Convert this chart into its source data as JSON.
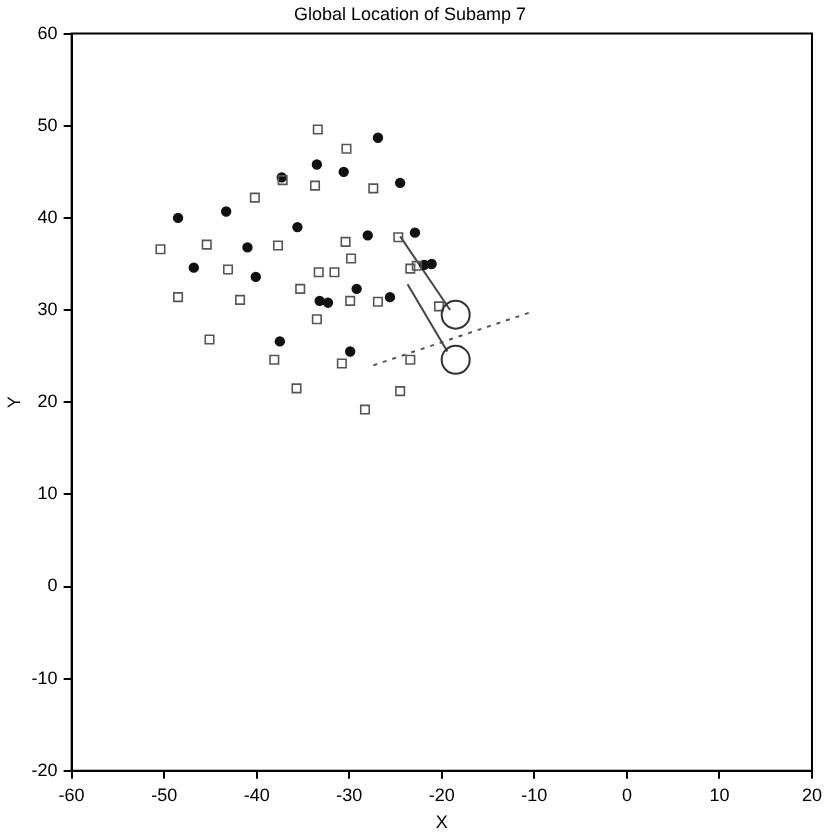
{
  "chart_data": {
    "type": "scatter",
    "title": "Global Location of Subamp 7",
    "xlabel": "X",
    "ylabel": "Y",
    "xlim": [
      -60,
      20
    ],
    "ylim": [
      -20,
      60
    ],
    "xticks": [
      -60,
      -50,
      -40,
      -30,
      -20,
      -10,
      0,
      10,
      20
    ],
    "yticks": [
      -20,
      -10,
      0,
      10,
      20,
      30,
      40,
      50,
      60
    ],
    "grid": false,
    "legend": false,
    "series": [
      {
        "marker": "square",
        "color": "#555555",
        "x": [
          -33.4,
          -30.3,
          -40.2,
          -37.2,
          -33.7,
          -27.4,
          -50.4,
          -45.4,
          -43.1,
          -37.7,
          -30.4,
          -24.7,
          -48.5,
          -41.8,
          -35.3,
          -33.3,
          -31.6,
          -29.8,
          -33.5,
          -29.9,
          -26.9,
          -23.4,
          -22.7,
          -45.1,
          -38.1,
          -30.8,
          -35.7,
          -28.3,
          -24.5,
          -23.4,
          -20.3
        ],
        "values": [
          49.6,
          47.5,
          42.2,
          44.1,
          43.5,
          43.2,
          36.6,
          37.1,
          34.4,
          37.0,
          37.4,
          37.9,
          31.4,
          31.1,
          32.3,
          34.1,
          34.1,
          35.6,
          29.0,
          31.0,
          30.9,
          34.5,
          34.8,
          26.8,
          24.6,
          24.2,
          21.5,
          19.2,
          21.2,
          24.6,
          30.4
        ]
      },
      {
        "marker": "circle",
        "color": "#111111",
        "x": [
          -48.5,
          -26.9,
          -33.5,
          -30.6,
          -43.3,
          -37.3,
          -35.6,
          -24.5,
          -28.0,
          -22.9,
          -46.8,
          -41.0,
          -40.1,
          -33.2,
          -32.3,
          -29.2,
          -25.6,
          -21.9,
          -21.1,
          -37.5,
          -29.9
        ],
        "values": [
          40.0,
          48.7,
          45.8,
          45.0,
          40.7,
          44.4,
          39.0,
          43.8,
          38.1,
          38.4,
          34.6,
          36.8,
          33.6,
          31.0,
          30.8,
          32.3,
          31.4,
          34.9,
          35.0,
          26.6,
          25.5
        ]
      },
      {
        "type": "bubble",
        "marker": "circle",
        "color": "#333333",
        "x": [
          -18.5,
          -18.5
        ],
        "values": [
          29.5,
          24.6
        ]
      },
      {
        "type": "line",
        "line_style": "solid",
        "color": "#444444",
        "x": [
          -24.5,
          -19.1
        ],
        "values": [
          38.0,
          30.0
        ]
      },
      {
        "type": "line",
        "line_style": "solid",
        "color": "#444444",
        "x": [
          -23.7,
          -19.4
        ],
        "values": [
          32.8,
          25.5
        ]
      },
      {
        "type": "line",
        "line_style": "dotted",
        "color": "#555555",
        "x": [
          -27.4,
          -10.0
        ],
        "values": [
          24.0,
          29.9
        ]
      }
    ]
  }
}
